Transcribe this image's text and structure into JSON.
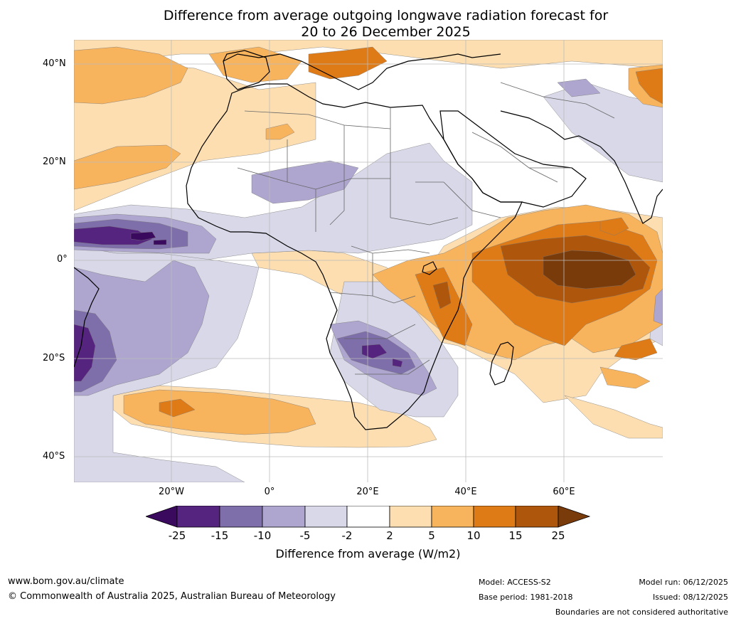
{
  "title": {
    "line1": "Difference from average outgoing longwave radiation forecast for",
    "line2": "20 to 26 December 2025"
  },
  "map": {
    "latitude_labels": [
      "40°N",
      "20°N",
      "0°",
      "20°S",
      "40°S"
    ],
    "longitude_labels": [
      "20°W",
      "0°",
      "20°E",
      "40°E",
      "60°E"
    ],
    "colors": {
      "neg25": "#3a0a5e",
      "neg15": "#55247f",
      "neg10": "#7e6eaa",
      "neg5": "#aea6cf",
      "neg2": "#d8d8e8",
      "zero": "#ffffff",
      "pos2": "#fddeb1",
      "pos5": "#f8b35d",
      "pos10": "#de7b17",
      "pos15": "#ad560c",
      "pos25": "#7a3b0a"
    }
  },
  "colorbar": {
    "ticks": [
      "-25",
      "-15",
      "-10",
      "-5",
      "-2",
      "2",
      "5",
      "10",
      "15",
      "25"
    ],
    "title": "Difference from average (W/m2)"
  },
  "footer": {
    "website": "www.bom.gov.au/climate",
    "copyright": "© Commonwealth of Australia 2025, Australian Bureau of Meteorology",
    "model": "Model: ACCESS-S2",
    "base_period": "Base period: 1981-2018",
    "model_run": "Model run: 06/12/2025",
    "issued": "Issued: 08/12/2025",
    "disclaimer": "Boundaries are not considered authoritative"
  }
}
